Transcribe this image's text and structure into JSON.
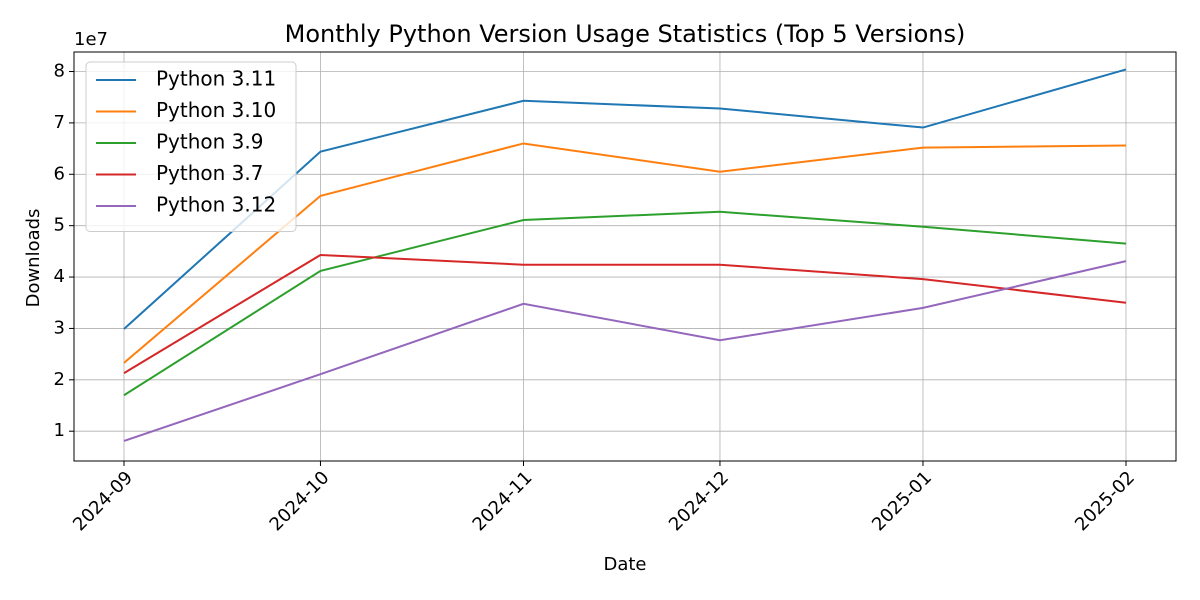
{
  "chart_data": {
    "type": "line",
    "title": "Monthly Python Version Usage Statistics (Top 5 Versions)",
    "x_label": "Date",
    "y_label": "Downloads",
    "y_offset_label": "1e7",
    "x": [
      "2024-09",
      "2024-10",
      "2024-11",
      "2024-12",
      "2025-01",
      "2025-02"
    ],
    "series": [
      {
        "name": "Python 3.11",
        "color": "#1f77b4",
        "values": [
          2.99,
          6.44,
          7.43,
          7.28,
          6.91,
          8.04
        ]
      },
      {
        "name": "Python 3.10",
        "color": "#ff7f0e",
        "values": [
          2.33,
          5.58,
          6.6,
          6.05,
          6.52,
          6.56
        ]
      },
      {
        "name": "Python 3.9",
        "color": "#2ca02c",
        "values": [
          1.7,
          4.12,
          5.11,
          5.27,
          4.98,
          4.65
        ]
      },
      {
        "name": "Python 3.7",
        "color": "#d62728",
        "values": [
          2.13,
          4.43,
          4.24,
          4.24,
          3.96,
          3.5
        ]
      },
      {
        "name": "Python 3.12",
        "color": "#9467bd",
        "values": [
          0.81,
          2.11,
          3.48,
          2.77,
          3.4,
          4.31
        ]
      }
    ],
    "ylim": [
      0.42,
      8.38
    ],
    "yticks": [
      1,
      2,
      3,
      4,
      5,
      6,
      7,
      8
    ],
    "grid": true,
    "legend": "upper-left"
  }
}
